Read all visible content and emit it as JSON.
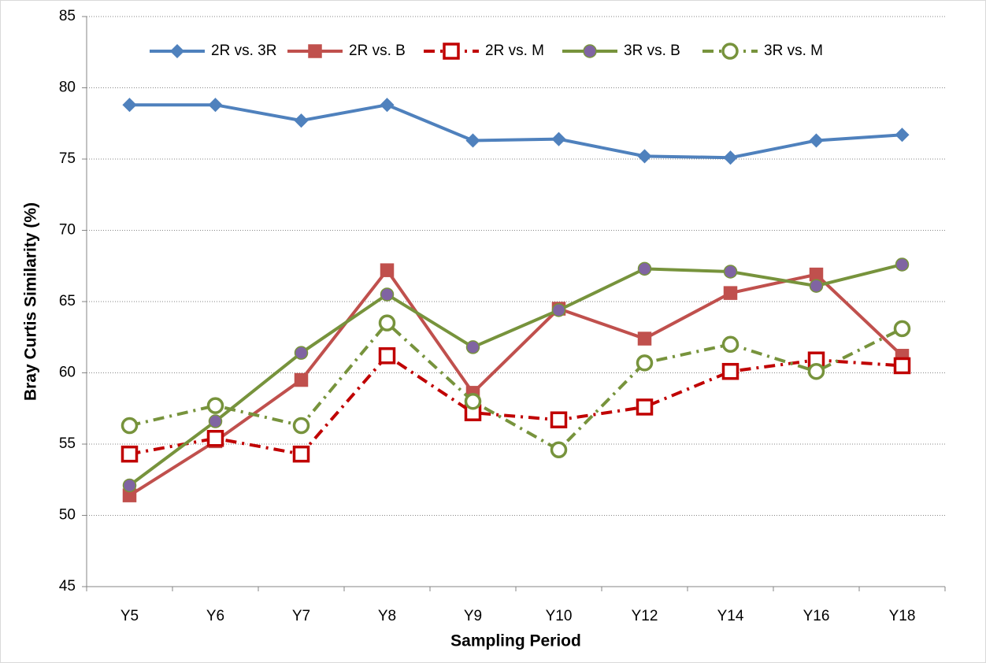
{
  "chart_data": {
    "type": "line",
    "x_label": "Sampling Period",
    "y_label": "Bray Curtis Similarity (%)",
    "categories": [
      "Y5",
      "Y6",
      "Y7",
      "Y8",
      "Y9",
      "Y10",
      "Y12",
      "Y14",
      "Y16",
      "Y18"
    ],
    "ylim": [
      45,
      85
    ],
    "yticks": [
      45,
      50,
      55,
      60,
      65,
      70,
      75,
      80,
      85
    ],
    "grid": true,
    "legend": "top",
    "series": [
      {
        "name": "2R vs. 3R",
        "color": "#4f81bd",
        "marker": "diamond",
        "marker_fill": "#4f81bd",
        "dash": "solid",
        "values": [
          78.8,
          78.8,
          77.7,
          78.8,
          76.3,
          76.4,
          75.2,
          75.1,
          76.3,
          76.7
        ]
      },
      {
        "name": "2R vs. B",
        "color": "#c0504d",
        "marker": "square",
        "marker_fill": "#c0504d",
        "dash": "solid",
        "values": [
          51.4,
          55.2,
          59.5,
          67.2,
          58.6,
          64.5,
          62.4,
          65.6,
          66.9,
          61.2
        ]
      },
      {
        "name": "2R vs. M",
        "color": "#c00000",
        "marker": "square",
        "marker_fill": "#ffffff",
        "dash": "dashdot",
        "values": [
          54.3,
          55.4,
          54.3,
          61.2,
          57.2,
          56.7,
          57.6,
          60.1,
          60.9,
          60.5
        ]
      },
      {
        "name": "3R vs. B",
        "color": "#77933c",
        "marker": "circle",
        "marker_fill": "#8064a2",
        "dash": "solid",
        "values": [
          52.1,
          56.6,
          61.4,
          65.5,
          61.8,
          64.4,
          67.3,
          67.1,
          66.1,
          67.6
        ]
      },
      {
        "name": "3R vs. M",
        "color": "#77933c",
        "marker": "circle",
        "marker_fill": "#ffffff",
        "dash": "dashdot",
        "values": [
          56.3,
          57.7,
          56.3,
          63.5,
          58.0,
          54.6,
          60.7,
          62.0,
          60.1,
          63.1
        ]
      }
    ]
  }
}
